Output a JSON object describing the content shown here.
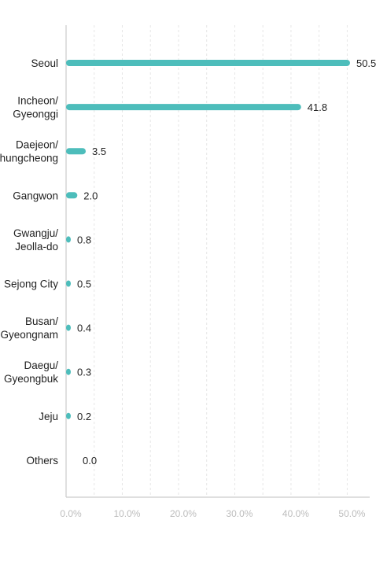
{
  "chart_data": {
    "type": "bar",
    "orientation": "horizontal",
    "title": "",
    "xlabel": "",
    "ylabel": "",
    "xlim": [
      0,
      54
    ],
    "grid": true,
    "bar_color": "#4dbdbb",
    "tick_values": [
      0,
      10,
      20,
      30,
      40,
      50
    ],
    "tick_labels": [
      "0.0%",
      "10.0%",
      "20.0%",
      "30.0%",
      "40.0%",
      "50.0%"
    ],
    "categories": [
      [
        "Seoul"
      ],
      [
        "Incheon/",
        "Gyeonggi"
      ],
      [
        "Daejeon/",
        "Chungcheong"
      ],
      [
        "Gangwon"
      ],
      [
        "Gwangju/",
        "Jeolla-do"
      ],
      [
        "Sejong City"
      ],
      [
        "Busan/",
        "Gyeongnam"
      ],
      [
        "Daegu/",
        "Gyeongbuk"
      ],
      [
        "Jeju"
      ],
      [
        "Others"
      ]
    ],
    "values": [
      50.5,
      41.8,
      3.5,
      2.0,
      0.8,
      0.5,
      0.4,
      0.3,
      0.2,
      0.0
    ],
    "value_labels": [
      "50.5",
      "41.8",
      "3.5",
      "2.0",
      "0.8",
      "0.5",
      "0.4",
      "0.3",
      "0.2",
      "0.0"
    ]
  }
}
